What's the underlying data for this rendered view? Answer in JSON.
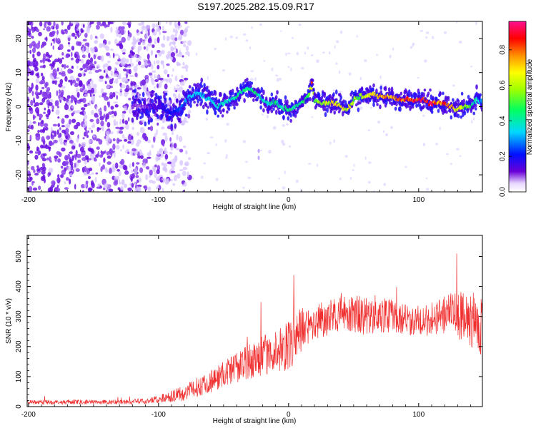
{
  "title": "S197.2025.282.15.09.R17",
  "colors": {
    "snr_line": "#f03030",
    "spectrum_main": "#3a00d8",
    "spectrum_scatter": "#7a2ee0"
  },
  "chart_data": [
    {
      "type": "heatmap",
      "xlabel": "Height of straight line (km)",
      "ylabel": "Frequency (Hz)",
      "xlim": [
        -201,
        149
      ],
      "ylim": [
        -25,
        25
      ],
      "xticks": [
        -200,
        -100,
        0,
        100
      ],
      "yticks": [
        -20,
        -10,
        0,
        10,
        20
      ],
      "grid": false,
      "colorbar": {
        "label": "Normalized spectral amplitude",
        "range": [
          0.0,
          0.96
        ],
        "ticks": [
          "0.0",
          "0.2",
          "0.4",
          "0.6",
          "0.8"
        ]
      },
      "ridge": {
        "x": [
          -110,
          -100,
          -95,
          -90,
          -85,
          -80,
          -75,
          -70,
          -65,
          -60,
          -55,
          -50,
          -45,
          -40,
          -35,
          -30,
          -25,
          -20,
          -15,
          -10,
          -5,
          0,
          5,
          10,
          15,
          18,
          20,
          25,
          30,
          35,
          40,
          45,
          50,
          55,
          60,
          65,
          70,
          75,
          80,
          85,
          90,
          95,
          100,
          105,
          110,
          115,
          120,
          125,
          130,
          135,
          140,
          145,
          149
        ],
        "y": [
          0,
          0,
          -1,
          -2,
          -1,
          1,
          3,
          4,
          3,
          2,
          0,
          1,
          2,
          3,
          5,
          5,
          4,
          2,
          1,
          1,
          0,
          -1,
          0,
          1,
          3,
          7,
          2,
          1,
          1,
          1,
          0,
          -1,
          2,
          3,
          3,
          4,
          3,
          3,
          3,
          2,
          2,
          2,
          2,
          2,
          1,
          1,
          1,
          0,
          -1,
          0,
          0,
          2,
          1
        ],
        "amplitude": [
          0.1,
          0.15,
          0.2,
          0.2,
          0.25,
          0.3,
          0.35,
          0.35,
          0.35,
          0.35,
          0.4,
          0.4,
          0.4,
          0.45,
          0.45,
          0.45,
          0.45,
          0.4,
          0.4,
          0.45,
          0.45,
          0.5,
          0.45,
          0.5,
          0.55,
          0.8,
          0.55,
          0.6,
          0.65,
          0.7,
          0.7,
          0.65,
          0.6,
          0.6,
          0.65,
          0.7,
          0.8,
          0.8,
          0.85,
          0.85,
          0.9,
          0.9,
          0.9,
          0.9,
          0.9,
          0.85,
          0.85,
          0.8,
          0.7,
          0.6,
          0.5,
          0.4,
          0.35
        ]
      }
    },
    {
      "type": "line",
      "xlabel": "Height of straight line (km)",
      "ylabel": "SNR (10 * v/v)",
      "xlim": [
        -201,
        149
      ],
      "ylim": [
        0,
        570
      ],
      "xticks": [
        -200,
        -100,
        0,
        100
      ],
      "yticks": [
        0,
        100,
        200,
        300,
        400,
        500
      ],
      "grid": false,
      "series": [
        {
          "x": [
            -201,
            -190,
            -180,
            -170,
            -160,
            -150,
            -140,
            -130,
            -120,
            -110,
            -100,
            -95,
            -90,
            -85,
            -80,
            -75,
            -70,
            -65,
            -60,
            -55,
            -50,
            -45,
            -40,
            -35,
            -30,
            -25,
            -20,
            -15,
            -10,
            -5,
            0,
            5,
            10,
            15,
            20,
            25,
            30,
            35,
            40,
            45,
            50,
            55,
            60,
            65,
            70,
            75,
            80,
            85,
            90,
            95,
            100,
            105,
            110,
            115,
            120,
            125,
            130,
            135,
            140,
            145,
            149
          ],
          "values": [
            15,
            15,
            15,
            15,
            15,
            15,
            15,
            15,
            16,
            18,
            25,
            30,
            35,
            40,
            45,
            55,
            65,
            75,
            85,
            95,
            110,
            120,
            130,
            140,
            150,
            160,
            170,
            175,
            185,
            190,
            200,
            225,
            255,
            265,
            280,
            290,
            295,
            300,
            305,
            310,
            310,
            305,
            300,
            295,
            300,
            305,
            300,
            295,
            290,
            285,
            285,
            290,
            290,
            300,
            305,
            310,
            300,
            300,
            290,
            280,
            270
          ],
          "noise": [
            12,
            12,
            12,
            12,
            12,
            12,
            12,
            12,
            14,
            16,
            20,
            25,
            30,
            35,
            40,
            45,
            50,
            55,
            60,
            65,
            70,
            75,
            80,
            85,
            90,
            95,
            100,
            105,
            110,
            120,
            130,
            130,
            120,
            110,
            100,
            95,
            90,
            90,
            90,
            95,
            100,
            100,
            95,
            90,
            90,
            90,
            85,
            85,
            80,
            80,
            80,
            85,
            90,
            95,
            100,
            110,
            120,
            130,
            140,
            150,
            160
          ]
        }
      ]
    }
  ]
}
